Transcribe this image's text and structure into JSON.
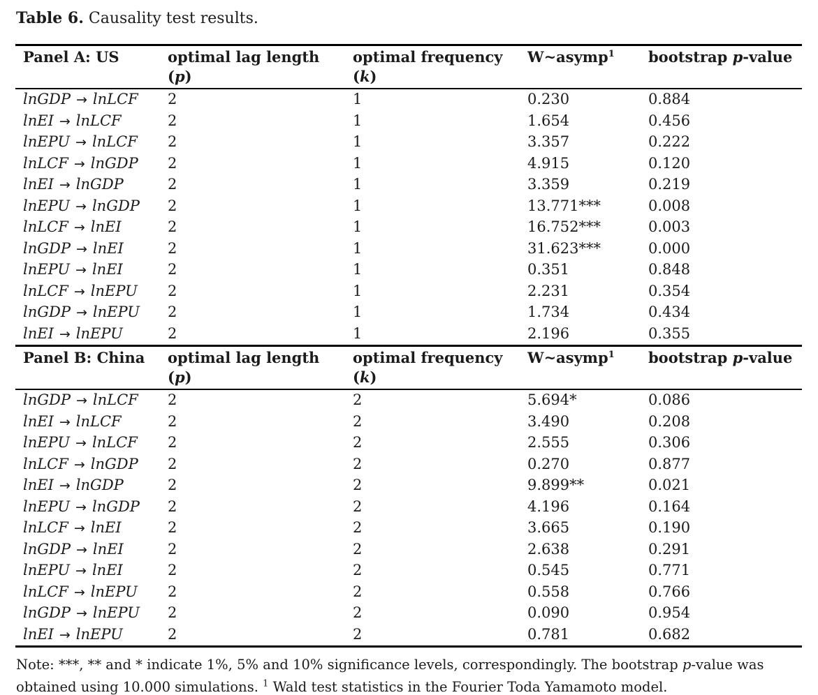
{
  "caption": {
    "label": "Table 6.",
    "text": " Causality test results."
  },
  "arrow": "→",
  "header": {
    "col2_line1": "optimal lag length",
    "col2_open": "(",
    "col2_letter": "p",
    "col2_close": ")",
    "col3_line1": "optimal frequency",
    "col3_open": "(",
    "col3_letter": "k",
    "col3_close": ")",
    "col4_base": "W~asymp",
    "col4_sup": "1",
    "col5_pre": "bootstrap ",
    "col5_italic": "p",
    "col5_post": "-value"
  },
  "panels": [
    {
      "label": "Panel A: US",
      "rows": [
        {
          "from": "lnGDP",
          "to": "lnLCF",
          "lag": "2",
          "freq": "1",
          "w": "0.230",
          "p": "0.884"
        },
        {
          "from": "lnEI",
          "to": "lnLCF",
          "lag": "2",
          "freq": "1",
          "w": "1.654",
          "p": "0.456"
        },
        {
          "from": "lnEPU",
          "to": "lnLCF",
          "lag": "2",
          "freq": "1",
          "w": "3.357",
          "p": "0.222"
        },
        {
          "from": "lnLCF",
          "to": "lnGDP",
          "lag": "2",
          "freq": "1",
          "w": "4.915",
          "p": "0.120"
        },
        {
          "from": "lnEI",
          "to": "lnGDP",
          "lag": "2",
          "freq": "1",
          "w": "3.359",
          "p": "0.219"
        },
        {
          "from": "lnEPU",
          "to": "lnGDP",
          "lag": "2",
          "freq": "1",
          "w": "13.771***",
          "p": "0.008"
        },
        {
          "from": "lnLCF",
          "to": "lnEI",
          "lag": "2",
          "freq": "1",
          "w": "16.752***",
          "p": "0.003"
        },
        {
          "from": "lnGDP",
          "to": "lnEI",
          "lag": "2",
          "freq": "1",
          "w": "31.623***",
          "p": "0.000"
        },
        {
          "from": "lnEPU",
          "to": "lnEI",
          "lag": "2",
          "freq": "1",
          "w": "0.351",
          "p": "0.848"
        },
        {
          "from": "lnLCF",
          "to": "lnEPU",
          "lag": "2",
          "freq": "1",
          "w": "2.231",
          "p": "0.354"
        },
        {
          "from": "lnGDP",
          "to": "lnEPU",
          "lag": "2",
          "freq": "1",
          "w": "1.734",
          "p": "0.434"
        },
        {
          "from": "lnEI",
          "to": "lnEPU",
          "lag": "2",
          "freq": "1",
          "w": "2.196",
          "p": "0.355"
        }
      ]
    },
    {
      "label": "Panel B: China",
      "rows": [
        {
          "from": "lnGDP",
          "to": "lnLCF",
          "lag": "2",
          "freq": "2",
          "w": "5.694*",
          "p": "0.086"
        },
        {
          "from": "lnEI",
          "to": "lnLCF",
          "lag": "2",
          "freq": "2",
          "w": "3.490",
          "p": "0.208"
        },
        {
          "from": "lnEPU",
          "to": "lnLCF",
          "lag": "2",
          "freq": "2",
          "w": "2.555",
          "p": "0.306"
        },
        {
          "from": "lnLCF",
          "to": "lnGDP",
          "lag": "2",
          "freq": "2",
          "w": "0.270",
          "p": "0.877"
        },
        {
          "from": "lnEI",
          "to": "lnGDP",
          "lag": "2",
          "freq": "2",
          "w": "9.899**",
          "p": "0.021"
        },
        {
          "from": "lnEPU",
          "to": "lnGDP",
          "lag": "2",
          "freq": "2",
          "w": "4.196",
          "p": "0.164"
        },
        {
          "from": "lnLCF",
          "to": "lnEI",
          "lag": "2",
          "freq": "2",
          "w": "3.665",
          "p": "0.190"
        },
        {
          "from": "lnGDP",
          "to": "lnEI",
          "lag": "2",
          "freq": "2",
          "w": "2.638",
          "p": "0.291"
        },
        {
          "from": "lnEPU",
          "to": "lnEI",
          "lag": "2",
          "freq": "2",
          "w": "0.545",
          "p": "0.771"
        },
        {
          "from": "lnLCF",
          "to": "lnEPU",
          "lag": "2",
          "freq": "2",
          "w": "0.558",
          "p": "0.766"
        },
        {
          "from": "lnGDP",
          "to": "lnEPU",
          "lag": "2",
          "freq": "2",
          "w": "0.090",
          "p": "0.954"
        },
        {
          "from": "lnEI",
          "to": "lnEPU",
          "lag": "2",
          "freq": "2",
          "w": "0.781",
          "p": "0.682"
        }
      ]
    }
  ],
  "note": {
    "pre": "Note: ***, ** and * indicate 1%, 5% and 10% significance levels, correspondingly. The bootstrap ",
    "italic_p": "p",
    "mid": "-value was obtained using 10.000 simulations. ",
    "sup": "1",
    "post": " Wald test statistics in the Fourier Toda Yamamoto model."
  }
}
